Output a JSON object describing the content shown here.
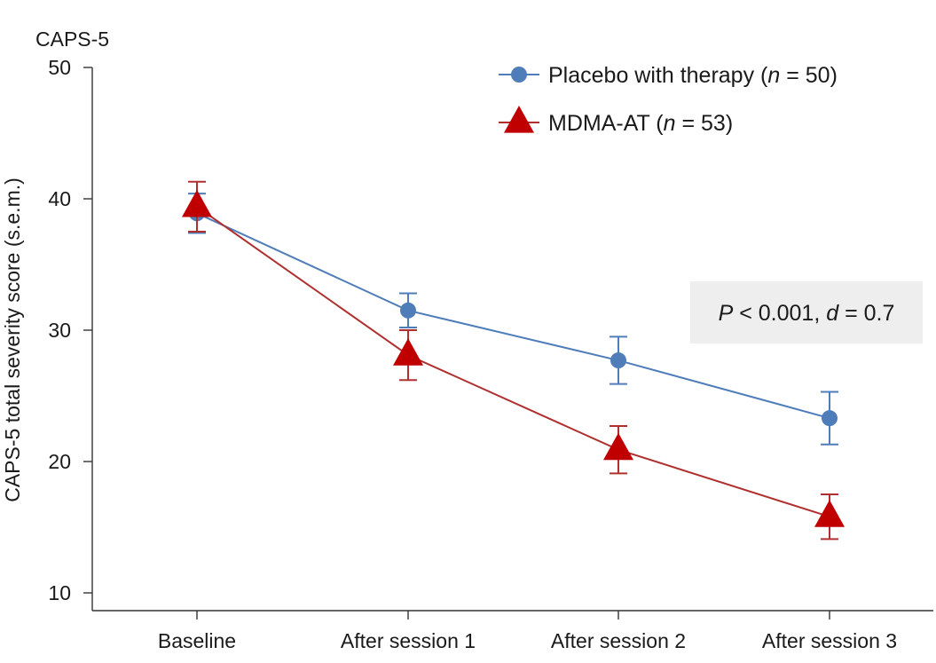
{
  "chart_data": {
    "type": "line",
    "title": "CAPS-5",
    "ylabel": "CAPS-5 total severity score (s.e.m.)",
    "xlabel": "",
    "categories": [
      "Baseline",
      "After session 1",
      "After session 2",
      "After session 3"
    ],
    "ylim": [
      10,
      50
    ],
    "yticks": [
      10,
      20,
      30,
      40,
      50
    ],
    "grid": false,
    "legend_position": "top-right",
    "series": [
      {
        "name_prefix": "Placebo with therapy (",
        "name_n_symbol": "n",
        "name_n_value": " = 50)",
        "marker": "circle",
        "color": "#4f7dba",
        "values": [
          38.9,
          31.5,
          27.7,
          23.3
        ],
        "error": [
          1.5,
          1.3,
          1.8,
          2.0
        ]
      },
      {
        "name_prefix": "MDMA-AT (",
        "name_n_symbol": "n",
        "name_n_value": " = 53)",
        "marker": "triangle",
        "color": "#c00000",
        "line_color": "#b03030",
        "values": [
          39.4,
          28.1,
          20.9,
          15.8
        ],
        "error": [
          1.9,
          1.9,
          1.8,
          1.7
        ]
      }
    ],
    "annotation": {
      "p_symbol": "P",
      "p_text": " < 0.001, ",
      "d_symbol": "d",
      "d_text": " = 0.7",
      "background": "#eeeeee"
    }
  }
}
